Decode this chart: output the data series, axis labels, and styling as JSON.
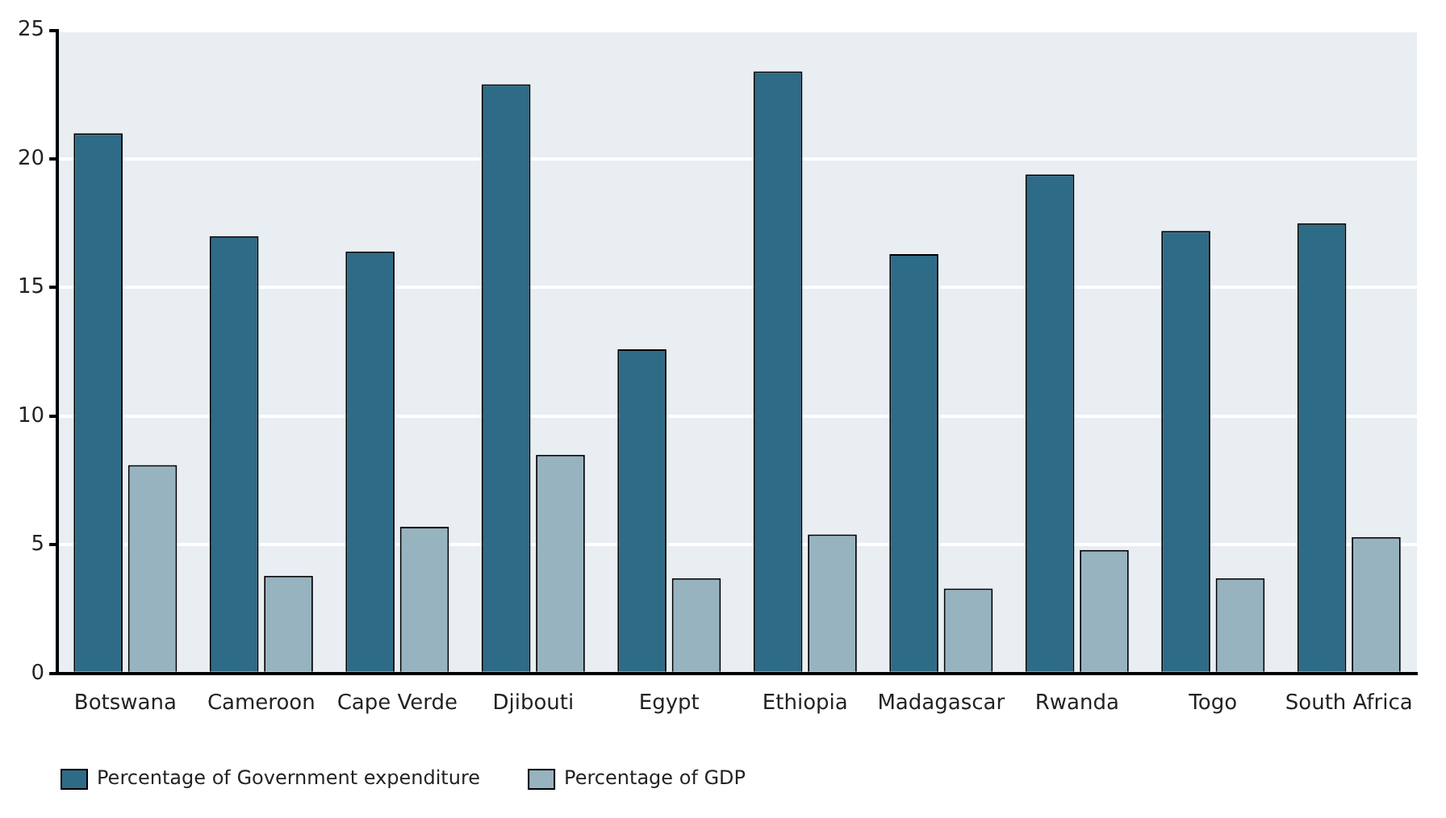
{
  "chart_data": {
    "type": "bar",
    "categories": [
      "Botswana",
      "Cameroon",
      "Cape Verde",
      "Djibouti",
      "Egypt",
      "Ethiopia",
      "Madagascar",
      "Rwanda",
      "Togo",
      "South Africa"
    ],
    "series": [
      {
        "name": "Percentage of Government expenditure",
        "color": "#2e6b87",
        "values": [
          21.0,
          17.0,
          16.4,
          22.9,
          12.6,
          23.4,
          16.3,
          19.4,
          17.2,
          17.5
        ]
      },
      {
        "name": "Percentage of GDP",
        "color": "#97b3c0",
        "values": [
          8.1,
          3.8,
          5.7,
          8.5,
          3.7,
          5.4,
          3.3,
          4.8,
          3.7,
          5.3
        ]
      }
    ],
    "ylim": [
      0,
      25
    ],
    "yticks": [
      0,
      5,
      10,
      15,
      20,
      25
    ],
    "grid": "y",
    "legend": "bottom left"
  }
}
